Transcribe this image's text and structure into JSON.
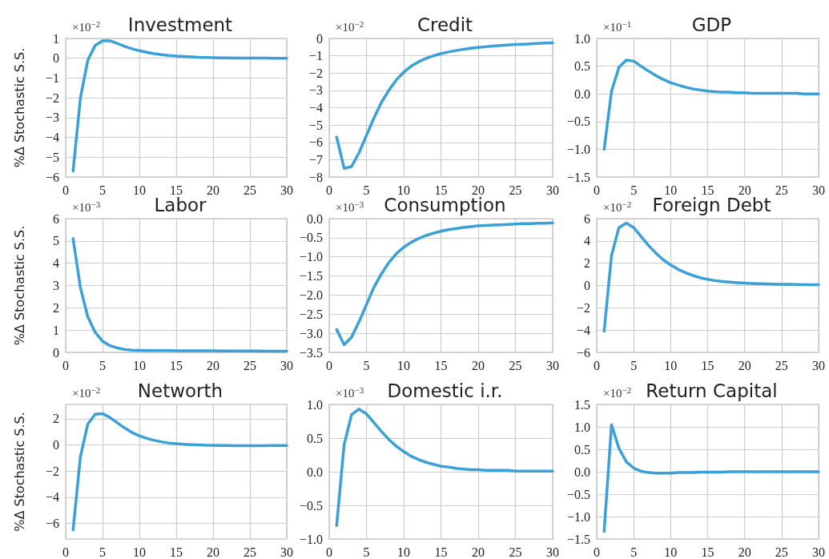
{
  "chart_data": [
    {
      "type": "line",
      "title": "Investment",
      "ylabel": "%Δ Stochastic S.S.",
      "annotations": [
        "×10$^{−2}$"
      ],
      "grid": true,
      "marker": "none",
      "xlim": [
        0,
        30
      ],
      "xticks": [
        0,
        5,
        10,
        15,
        20,
        25,
        30
      ],
      "ylim": [
        -6,
        1
      ],
      "yticks": [
        -6,
        -5,
        -4,
        -3,
        -2,
        -1,
        0,
        1
      ],
      "x": [
        1,
        2,
        3,
        4,
        5,
        6,
        7,
        8,
        9,
        10,
        11,
        12,
        13,
        14,
        15,
        16,
        17,
        18,
        19,
        20,
        21,
        22,
        23,
        24,
        25,
        26,
        27,
        28,
        29,
        30
      ],
      "series": [
        {
          "color": "#3aa0d8",
          "values": [
            -5.7,
            -2.0,
            -0.1,
            0.65,
            0.88,
            0.88,
            0.75,
            0.6,
            0.48,
            0.38,
            0.3,
            0.23,
            0.18,
            0.14,
            0.11,
            0.09,
            0.07,
            0.05,
            0.04,
            0.03,
            0.02,
            0.02,
            0.01,
            0.01,
            0.01,
            0.01,
            0.01,
            0,
            0,
            0
          ]
        }
      ]
    },
    {
      "type": "line",
      "title": "Credit",
      "annotations": [
        "×10$^{−2}$"
      ],
      "grid": true,
      "marker": "none",
      "xlim": [
        0,
        30
      ],
      "xticks": [
        0,
        5,
        10,
        15,
        20,
        25,
        30
      ],
      "ylim": [
        -8,
        0
      ],
      "yticks": [
        -8,
        -7,
        -6,
        -5,
        -4,
        -3,
        -2,
        -1,
        0
      ],
      "x": [
        1,
        2,
        3,
        4,
        5,
        6,
        7,
        8,
        9,
        10,
        11,
        12,
        13,
        14,
        15,
        16,
        17,
        18,
        19,
        20,
        21,
        22,
        23,
        24,
        25,
        26,
        27,
        28,
        29,
        30
      ],
      "series": [
        {
          "color": "#3aa0d8",
          "values": [
            -5.7,
            -7.5,
            -7.4,
            -6.6,
            -5.6,
            -4.6,
            -3.7,
            -3.0,
            -2.4,
            -1.95,
            -1.6,
            -1.35,
            -1.15,
            -1.0,
            -0.88,
            -0.78,
            -0.7,
            -0.63,
            -0.57,
            -0.52,
            -0.48,
            -0.44,
            -0.41,
            -0.38,
            -0.35,
            -0.33,
            -0.31,
            -0.29,
            -0.27,
            -0.25
          ]
        }
      ]
    },
    {
      "type": "line",
      "title": "GDP",
      "annotations": [
        "×10$^{−1}$"
      ],
      "grid": true,
      "marker": "none",
      "xlim": [
        0,
        30
      ],
      "xticks": [
        0,
        5,
        10,
        15,
        20,
        25,
        30
      ],
      "ylim": [
        -1.5,
        1
      ],
      "yticks": [
        {
          "value": -1.5,
          "label": "−1.5"
        },
        {
          "value": -1,
          "label": "−1.0"
        },
        {
          "value": -0.5,
          "label": "−0.5"
        },
        {
          "value": 0,
          "label": "0.0"
        },
        {
          "value": 0.5,
          "label": "0.5"
        },
        {
          "value": 1,
          "label": "1.0"
        }
      ],
      "x": [
        1,
        2,
        3,
        4,
        5,
        6,
        7,
        8,
        9,
        10,
        11,
        12,
        13,
        14,
        15,
        16,
        17,
        18,
        19,
        20,
        21,
        22,
        23,
        24,
        25,
        26,
        27,
        28,
        29,
        30
      ],
      "series": [
        {
          "color": "#3aa0d8",
          "values": [
            -1.0,
            0.05,
            0.48,
            0.61,
            0.59,
            0.5,
            0.41,
            0.33,
            0.26,
            0.2,
            0.16,
            0.12,
            0.09,
            0.07,
            0.05,
            0.04,
            0.03,
            0.03,
            0.02,
            0.02,
            0.01,
            0.01,
            0.01,
            0.01,
            0.01,
            0.01,
            0.01,
            0,
            0,
            0
          ]
        }
      ]
    },
    {
      "type": "line",
      "title": "Labor",
      "ylabel": "%Δ Stochastic S.S.",
      "annotations": [
        "×10$^{−3}$"
      ],
      "grid": true,
      "marker": "none",
      "xlim": [
        0,
        30
      ],
      "xticks": [
        0,
        5,
        10,
        15,
        20,
        25,
        30
      ],
      "ylim": [
        0,
        6
      ],
      "yticks": [
        0,
        1,
        2,
        3,
        4,
        5,
        6
      ],
      "x": [
        1,
        2,
        3,
        4,
        5,
        6,
        7,
        8,
        9,
        10,
        11,
        12,
        13,
        14,
        15,
        16,
        17,
        18,
        19,
        20,
        21,
        22,
        23,
        24,
        25,
        26,
        27,
        28,
        29,
        30
      ],
      "series": [
        {
          "color": "#3aa0d8",
          "values": [
            5.1,
            2.9,
            1.6,
            0.9,
            0.5,
            0.3,
            0.2,
            0.13,
            0.1,
            0.09,
            0.08,
            0.08,
            0.08,
            0.08,
            0.07,
            0.07,
            0.07,
            0.07,
            0.07,
            0.07,
            0.06,
            0.06,
            0.06,
            0.06,
            0.06,
            0.06,
            0.05,
            0.05,
            0.05,
            0.05
          ]
        }
      ]
    },
    {
      "type": "line",
      "title": "Consumption",
      "annotations": [
        "×10$^{−3}$"
      ],
      "grid": true,
      "marker": "none",
      "xlim": [
        0,
        30
      ],
      "xticks": [
        0,
        5,
        10,
        15,
        20,
        25,
        30
      ],
      "ylim": [
        -3.5,
        0
      ],
      "yticks": [
        {
          "value": -3.5,
          "label": "−3.5"
        },
        {
          "value": -3,
          "label": "−3.0"
        },
        {
          "value": -2.5,
          "label": "−2.5"
        },
        {
          "value": -2,
          "label": "−2.0"
        },
        {
          "value": -1.5,
          "label": "−1.5"
        },
        {
          "value": -1,
          "label": "−1.0"
        },
        {
          "value": -0.5,
          "label": "−0.5"
        },
        {
          "value": 0,
          "label": "0.0"
        }
      ],
      "x": [
        1,
        2,
        3,
        4,
        5,
        6,
        7,
        8,
        9,
        10,
        11,
        12,
        13,
        14,
        15,
        16,
        17,
        18,
        19,
        20,
        21,
        22,
        23,
        24,
        25,
        26,
        27,
        28,
        29,
        30
      ],
      "series": [
        {
          "color": "#3aa0d8",
          "values": [
            -2.9,
            -3.3,
            -3.1,
            -2.7,
            -2.25,
            -1.8,
            -1.45,
            -1.15,
            -0.92,
            -0.75,
            -0.62,
            -0.52,
            -0.44,
            -0.38,
            -0.33,
            -0.29,
            -0.26,
            -0.23,
            -0.21,
            -0.19,
            -0.18,
            -0.17,
            -0.16,
            -0.15,
            -0.14,
            -0.13,
            -0.13,
            -0.12,
            -0.12,
            -0.11
          ]
        }
      ]
    },
    {
      "type": "line",
      "title": "Foreign Debt",
      "annotations": [
        "×10$^{−2}$"
      ],
      "grid": true,
      "marker": "none",
      "xlim": [
        0,
        30
      ],
      "xticks": [
        0,
        5,
        10,
        15,
        20,
        25,
        30
      ],
      "ylim": [
        -6,
        6
      ],
      "yticks": [
        -6,
        -4,
        -2,
        0,
        2,
        4,
        6
      ],
      "x": [
        1,
        2,
        3,
        4,
        5,
        6,
        7,
        8,
        9,
        10,
        11,
        12,
        13,
        14,
        15,
        16,
        17,
        18,
        19,
        20,
        21,
        22,
        23,
        24,
        25,
        26,
        27,
        28,
        29,
        30
      ],
      "series": [
        {
          "color": "#3aa0d8",
          "values": [
            -4.1,
            2.7,
            5.2,
            5.6,
            5.2,
            4.4,
            3.6,
            2.9,
            2.3,
            1.85,
            1.45,
            1.15,
            0.9,
            0.7,
            0.55,
            0.44,
            0.36,
            0.3,
            0.25,
            0.21,
            0.18,
            0.16,
            0.14,
            0.12,
            0.11,
            0.1,
            0.09,
            0.08,
            0.07,
            0.07
          ]
        }
      ]
    },
    {
      "type": "line",
      "title": "Networth",
      "ylabel": "%Δ Stochastic S.S.",
      "annotations": [
        "×10$^{−2}$"
      ],
      "grid": true,
      "marker": "none",
      "xlim": [
        0,
        30
      ],
      "xticks": [
        0,
        5,
        10,
        15,
        20,
        25,
        30
      ],
      "ylim": [
        -7.2,
        3.1
      ],
      "yticks": [
        -6,
        -4,
        -2,
        0,
        2
      ],
      "x": [
        1,
        2,
        3,
        4,
        5,
        6,
        7,
        8,
        9,
        10,
        11,
        12,
        13,
        14,
        15,
        16,
        17,
        18,
        19,
        20,
        21,
        22,
        23,
        24,
        25,
        26,
        27,
        28,
        29,
        30
      ],
      "series": [
        {
          "color": "#3aa0d8",
          "values": [
            -6.5,
            -0.9,
            1.6,
            2.35,
            2.4,
            2.1,
            1.7,
            1.3,
            0.95,
            0.7,
            0.5,
            0.35,
            0.24,
            0.15,
            0.09,
            0.05,
            0.02,
            0,
            -0.02,
            -0.03,
            -0.04,
            -0.04,
            -0.05,
            -0.05,
            -0.05,
            -0.05,
            -0.05,
            -0.04,
            -0.04,
            -0.04
          ]
        }
      ]
    },
    {
      "type": "line",
      "title": "Domestic i.r.",
      "annotations": [
        "×10$^{−3}$"
      ],
      "grid": true,
      "marker": "none",
      "xlim": [
        0,
        30
      ],
      "xticks": [
        0,
        5,
        10,
        15,
        20,
        25,
        30
      ],
      "ylim": [
        -1,
        1
      ],
      "yticks": [
        {
          "value": -1,
          "label": "−1.0"
        },
        {
          "value": -0.5,
          "label": "−0.5"
        },
        {
          "value": 0,
          "label": "0.0"
        },
        {
          "value": 0.5,
          "label": "0.5"
        },
        {
          "value": 1,
          "label": "1.0"
        }
      ],
      "x": [
        1,
        2,
        3,
        4,
        5,
        6,
        7,
        8,
        9,
        10,
        11,
        12,
        13,
        14,
        15,
        16,
        17,
        18,
        19,
        20,
        21,
        22,
        23,
        24,
        25,
        26,
        27,
        28,
        29,
        30
      ],
      "series": [
        {
          "color": "#3aa0d8",
          "values": [
            -0.8,
            0.4,
            0.85,
            0.93,
            0.86,
            0.73,
            0.6,
            0.48,
            0.38,
            0.3,
            0.23,
            0.18,
            0.14,
            0.11,
            0.08,
            0.07,
            0.05,
            0.04,
            0.03,
            0.03,
            0.02,
            0.02,
            0.02,
            0.02,
            0.01,
            0.01,
            0.01,
            0.01,
            0.01,
            0.01
          ]
        }
      ]
    },
    {
      "type": "line",
      "title": "Return Capital",
      "annotations": [
        "×10$^{−2}$"
      ],
      "grid": true,
      "marker": "none",
      "xlim": [
        0,
        30
      ],
      "xticks": [
        0,
        5,
        10,
        15,
        20,
        25,
        30
      ],
      "ylim": [
        -1.5,
        1.5
      ],
      "yticks": [
        {
          "value": -1.5,
          "label": "−1.5"
        },
        {
          "value": -1,
          "label": "−1.0"
        },
        {
          "value": -0.5,
          "label": "−0.5"
        },
        {
          "value": 0,
          "label": "0.0"
        },
        {
          "value": 0.5,
          "label": "0.5"
        },
        {
          "value": 1,
          "label": "1.0"
        },
        {
          "value": 1.5,
          "label": "1.5"
        }
      ],
      "x": [
        1,
        2,
        3,
        4,
        5,
        6,
        7,
        8,
        9,
        10,
        11,
        12,
        13,
        14,
        15,
        16,
        17,
        18,
        19,
        20,
        21,
        22,
        23,
        24,
        25,
        26,
        27,
        28,
        29,
        30
      ],
      "series": [
        {
          "color": "#3aa0d8",
          "values": [
            -1.33,
            1.05,
            0.52,
            0.22,
            0.08,
            0.01,
            -0.02,
            -0.03,
            -0.03,
            -0.03,
            -0.02,
            -0.02,
            -0.02,
            -0.01,
            -0.01,
            -0.01,
            -0.01,
            0,
            0,
            0,
            0,
            0,
            0,
            0,
            0,
            0,
            0,
            0,
            0,
            0
          ]
        }
      ]
    }
  ]
}
